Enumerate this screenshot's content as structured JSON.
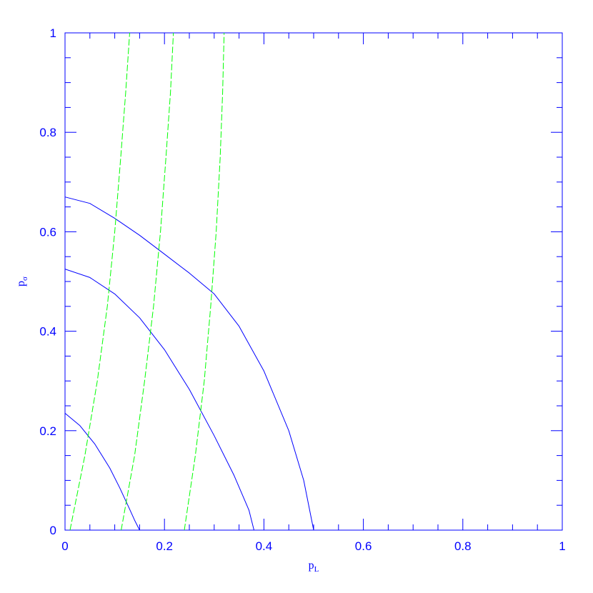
{
  "chart_data": {
    "type": "line",
    "title": "",
    "xlabel": "p",
    "xlabel_sub": "L",
    "ylabel": "p",
    "ylabel_sub": "σ",
    "xlim": [
      0,
      1
    ],
    "ylim": [
      0,
      1
    ],
    "x_ticks": [
      0,
      0.2,
      0.4,
      0.6,
      0.8,
      1
    ],
    "y_ticks": [
      0,
      0.2,
      0.4,
      0.6,
      0.8,
      1
    ],
    "x_tick_labels": [
      "0",
      "0.2",
      "0.4",
      "0.6",
      "0.8",
      "1"
    ],
    "y_tick_labels": [
      "0",
      "0.2",
      "0.4",
      "0.6",
      "0.8",
      "1"
    ],
    "grid": false,
    "colors": {
      "axes": "#0000ff",
      "solid": "#0000ff",
      "dashed": "#00ff00"
    },
    "series": [
      {
        "style": "solid",
        "color": "#0000ff",
        "x": [
          0,
          0.03,
          0.06,
          0.09,
          0.11,
          0.13,
          0.14,
          0.15
        ],
        "y": [
          0.235,
          0.21,
          0.173,
          0.125,
          0.085,
          0.042,
          0.02,
          0
        ]
      },
      {
        "style": "solid",
        "color": "#0000ff",
        "x": [
          0,
          0.05,
          0.1,
          0.15,
          0.2,
          0.25,
          0.3,
          0.34,
          0.37,
          0.38
        ],
        "y": [
          0.525,
          0.508,
          0.475,
          0.427,
          0.363,
          0.283,
          0.19,
          0.11,
          0.04,
          0
        ]
      },
      {
        "style": "solid",
        "color": "#0000ff",
        "x": [
          0,
          0.05,
          0.1,
          0.15,
          0.2,
          0.25,
          0.3,
          0.35,
          0.4,
          0.45,
          0.48,
          0.5
        ],
        "y": [
          0.67,
          0.657,
          0.627,
          0.593,
          0.555,
          0.517,
          0.475,
          0.41,
          0.32,
          0.2,
          0.1,
          0
        ]
      },
      {
        "style": "dashed",
        "color": "#00ff00",
        "x": [
          0.01,
          0.04,
          0.065,
          0.085,
          0.1,
          0.112,
          0.122,
          0.13
        ],
        "y": [
          0,
          0.15,
          0.3,
          0.45,
          0.6,
          0.75,
          0.88,
          1
        ]
      },
      {
        "style": "dashed",
        "color": "#00ff00",
        "x": [
          0.113,
          0.14,
          0.16,
          0.178,
          0.192,
          0.203,
          0.212,
          0.218
        ],
        "y": [
          0,
          0.15,
          0.3,
          0.45,
          0.6,
          0.75,
          0.88,
          1
        ]
      },
      {
        "style": "dashed",
        "color": "#00ff00",
        "x": [
          0.24,
          0.262,
          0.28,
          0.293,
          0.304,
          0.312,
          0.317,
          0.32
        ],
        "y": [
          0,
          0.15,
          0.3,
          0.45,
          0.6,
          0.75,
          0.88,
          1
        ]
      }
    ]
  }
}
